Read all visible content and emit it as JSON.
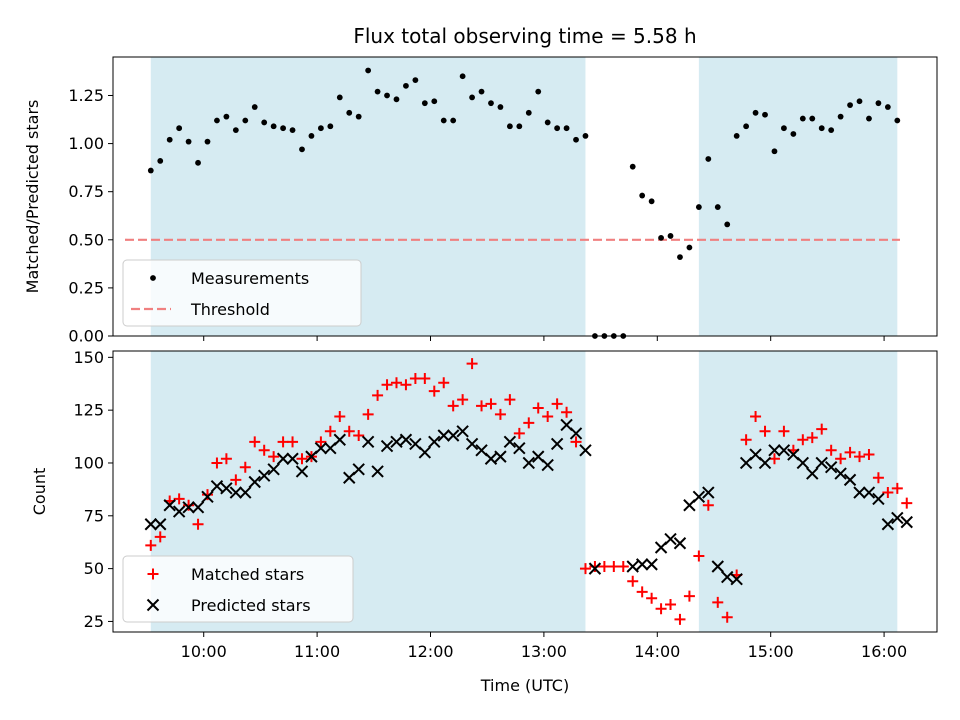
{
  "chart_data": [
    {
      "type": "scatter",
      "title": "Flux total observing time = 5.58 h",
      "xlabel": "",
      "ylabel": "Matched/Predicted stars",
      "xlim": [
        "09:12",
        "16:28"
      ],
      "ylim": [
        0,
        1.45
      ],
      "x_ticks": [
        "10:00",
        "11:00",
        "12:00",
        "13:00",
        "14:00",
        "15:00",
        "16:00"
      ],
      "y_ticks": [
        "0.00",
        "0.25",
        "0.50",
        "0.75",
        "1.00",
        "1.25"
      ],
      "shaded_intervals": [
        [
          "09:32",
          "13:22"
        ],
        [
          "14:22",
          "16:07"
        ]
      ],
      "shade_color": "#add8e6",
      "legend": {
        "placement": "lower-left",
        "entries": [
          "Measurements",
          "Threshold"
        ]
      },
      "threshold": {
        "name": "Threshold",
        "value": 0.5,
        "color": "#f08080",
        "style": "dashed"
      },
      "series": [
        {
          "name": "Measurements",
          "color": "#000000",
          "marker": "dot",
          "points": [
            [
              "09:32",
              0.86
            ],
            [
              "09:37",
              0.91
            ],
            [
              "09:42",
              1.02
            ],
            [
              "09:47",
              1.08
            ],
            [
              "09:52",
              1.01
            ],
            [
              "09:57",
              0.9
            ],
            [
              "10:02",
              1.01
            ],
            [
              "10:07",
              1.12
            ],
            [
              "10:12",
              1.14
            ],
            [
              "10:17",
              1.07
            ],
            [
              "10:22",
              1.12
            ],
            [
              "10:27",
              1.19
            ],
            [
              "10:32",
              1.11
            ],
            [
              "10:37",
              1.09
            ],
            [
              "10:42",
              1.08
            ],
            [
              "10:47",
              1.07
            ],
            [
              "10:52",
              0.97
            ],
            [
              "10:57",
              1.04
            ],
            [
              "11:02",
              1.08
            ],
            [
              "11:07",
              1.09
            ],
            [
              "11:12",
              1.24
            ],
            [
              "11:17",
              1.16
            ],
            [
              "11:22",
              1.14
            ],
            [
              "11:27",
              1.38
            ],
            [
              "11:32",
              1.27
            ],
            [
              "11:37",
              1.25
            ],
            [
              "11:42",
              1.23
            ],
            [
              "11:47",
              1.3
            ],
            [
              "11:52",
              1.33
            ],
            [
              "11:57",
              1.21
            ],
            [
              "12:02",
              1.22
            ],
            [
              "12:07",
              1.12
            ],
            [
              "12:12",
              1.12
            ],
            [
              "12:17",
              1.35
            ],
            [
              "12:22",
              1.24
            ],
            [
              "12:27",
              1.27
            ],
            [
              "12:32",
              1.21
            ],
            [
              "12:37",
              1.19
            ],
            [
              "12:42",
              1.09
            ],
            [
              "12:47",
              1.09
            ],
            [
              "12:52",
              1.16
            ],
            [
              "12:57",
              1.27
            ],
            [
              "13:02",
              1.11
            ],
            [
              "13:07",
              1.08
            ],
            [
              "13:12",
              1.08
            ],
            [
              "13:17",
              1.02
            ],
            [
              "13:22",
              1.04
            ],
            [
              "13:27",
              0.0
            ],
            [
              "13:32",
              0.0
            ],
            [
              "13:37",
              0.0
            ],
            [
              "13:42",
              0.0
            ],
            [
              "13:47",
              0.88
            ],
            [
              "13:52",
              0.73
            ],
            [
              "13:57",
              0.7
            ],
            [
              "14:02",
              0.51
            ],
            [
              "14:07",
              0.52
            ],
            [
              "14:12",
              0.41
            ],
            [
              "14:17",
              0.46
            ],
            [
              "14:22",
              0.67
            ],
            [
              "14:27",
              0.92
            ],
            [
              "14:32",
              0.67
            ],
            [
              "14:37",
              0.58
            ],
            [
              "14:42",
              1.04
            ],
            [
              "14:47",
              1.09
            ],
            [
              "14:52",
              1.16
            ],
            [
              "14:57",
              1.15
            ],
            [
              "15:02",
              0.96
            ],
            [
              "15:07",
              1.08
            ],
            [
              "15:12",
              1.05
            ],
            [
              "15:17",
              1.13
            ],
            [
              "15:22",
              1.13
            ],
            [
              "15:27",
              1.08
            ],
            [
              "15:32",
              1.07
            ],
            [
              "15:37",
              1.14
            ],
            [
              "15:42",
              1.2
            ],
            [
              "15:47",
              1.22
            ],
            [
              "15:52",
              1.13
            ],
            [
              "15:57",
              1.21
            ],
            [
              "16:02",
              1.19
            ],
            [
              "16:07",
              1.12
            ]
          ]
        }
      ]
    },
    {
      "type": "scatter",
      "title": "",
      "xlabel": "Time (UTC)",
      "ylabel": "Count",
      "xlim": [
        "09:12",
        "16:28"
      ],
      "ylim": [
        20,
        153
      ],
      "x_ticks": [
        "10:00",
        "11:00",
        "12:00",
        "13:00",
        "14:00",
        "15:00",
        "16:00"
      ],
      "y_ticks": [
        "25",
        "50",
        "75",
        "100",
        "125",
        "150"
      ],
      "shaded_intervals": [
        [
          "09:32",
          "13:22"
        ],
        [
          "14:22",
          "16:07"
        ]
      ],
      "shade_color": "#add8e6",
      "legend": {
        "placement": "lower-left",
        "entries": [
          "Matched stars",
          "Predicted stars"
        ]
      },
      "series": [
        {
          "name": "Matched stars",
          "color": "#ff0000",
          "marker": "plus",
          "points": [
            [
              "09:32",
              61
            ],
            [
              "09:37",
              65
            ],
            [
              "09:42",
              82
            ],
            [
              "09:47",
              83
            ],
            [
              "09:52",
              80
            ],
            [
              "09:57",
              71
            ],
            [
              "10:02",
              85
            ],
            [
              "10:07",
              100
            ],
            [
              "10:12",
              102
            ],
            [
              "10:17",
              92
            ],
            [
              "10:22",
              98
            ],
            [
              "10:27",
              110
            ],
            [
              "10:32",
              106
            ],
            [
              "10:37",
              103
            ],
            [
              "10:42",
              110
            ],
            [
              "10:47",
              110
            ],
            [
              "10:52",
              102
            ],
            [
              "10:57",
              103
            ],
            [
              "11:02",
              110
            ],
            [
              "11:07",
              115
            ],
            [
              "11:12",
              122
            ],
            [
              "11:17",
              115
            ],
            [
              "11:22",
              113
            ],
            [
              "11:27",
              123
            ],
            [
              "11:32",
              132
            ],
            [
              "11:37",
              137
            ],
            [
              "11:42",
              138
            ],
            [
              "11:47",
              137
            ],
            [
              "11:52",
              140
            ],
            [
              "11:57",
              140
            ],
            [
              "12:02",
              134
            ],
            [
              "12:07",
              138
            ],
            [
              "12:12",
              127
            ],
            [
              "12:17",
              130
            ],
            [
              "12:22",
              147
            ],
            [
              "12:27",
              127
            ],
            [
              "12:32",
              128
            ],
            [
              "12:37",
              123
            ],
            [
              "12:42",
              130
            ],
            [
              "12:47",
              114
            ],
            [
              "12:52",
              119
            ],
            [
              "12:57",
              126
            ],
            [
              "13:02",
              122
            ],
            [
              "13:07",
              128
            ],
            [
              "13:12",
              124
            ],
            [
              "13:17",
              110
            ],
            [
              "13:22",
              50
            ],
            [
              "13:27",
              51
            ],
            [
              "13:32",
              51
            ],
            [
              "13:37",
              51
            ],
            [
              "13:42",
              51
            ],
            [
              "13:47",
              44
            ],
            [
              "13:52",
              39
            ],
            [
              "13:57",
              36
            ],
            [
              "14:02",
              31
            ],
            [
              "14:07",
              33
            ],
            [
              "14:12",
              26
            ],
            [
              "14:17",
              37
            ],
            [
              "14:22",
              56
            ],
            [
              "14:27",
              80
            ],
            [
              "14:32",
              34
            ],
            [
              "14:37",
              27
            ],
            [
              "14:42",
              47
            ],
            [
              "14:47",
              111
            ],
            [
              "14:52",
              122
            ],
            [
              "14:57",
              115
            ],
            [
              "15:02",
              102
            ],
            [
              "15:07",
              115
            ],
            [
              "15:12",
              106
            ],
            [
              "15:17",
              111
            ],
            [
              "15:22",
              112
            ],
            [
              "15:27",
              116
            ],
            [
              "15:32",
              106
            ],
            [
              "15:37",
              102
            ],
            [
              "15:42",
              105
            ],
            [
              "15:47",
              103
            ],
            [
              "15:52",
              104
            ],
            [
              "15:57",
              93
            ],
            [
              "16:02",
              86
            ],
            [
              "16:07",
              88
            ],
            [
              "16:12",
              81
            ]
          ]
        },
        {
          "name": "Predicted stars",
          "color": "#000000",
          "marker": "x",
          "points": [
            [
              "09:32",
              71
            ],
            [
              "09:37",
              71
            ],
            [
              "09:42",
              80
            ],
            [
              "09:47",
              77
            ],
            [
              "09:52",
              79
            ],
            [
              "09:57",
              79
            ],
            [
              "10:02",
              84
            ],
            [
              "10:07",
              89
            ],
            [
              "10:12",
              88
            ],
            [
              "10:17",
              86
            ],
            [
              "10:22",
              86
            ],
            [
              "10:27",
              91
            ],
            [
              "10:32",
              94
            ],
            [
              "10:37",
              97
            ],
            [
              "10:42",
              102
            ],
            [
              "10:47",
              102
            ],
            [
              "10:52",
              96
            ],
            [
              "10:57",
              103
            ],
            [
              "11:02",
              107
            ],
            [
              "11:07",
              107
            ],
            [
              "11:12",
              111
            ],
            [
              "11:17",
              93
            ],
            [
              "11:22",
              97
            ],
            [
              "11:27",
              110
            ],
            [
              "11:32",
              96
            ],
            [
              "11:37",
              108
            ],
            [
              "11:42",
              110
            ],
            [
              "11:47",
              111
            ],
            [
              "11:52",
              109
            ],
            [
              "11:57",
              105
            ],
            [
              "12:02",
              110
            ],
            [
              "12:07",
              113
            ],
            [
              "12:12",
              113
            ],
            [
              "12:17",
              115
            ],
            [
              "12:22",
              109
            ],
            [
              "12:27",
              106
            ],
            [
              "12:32",
              102
            ],
            [
              "12:37",
              103
            ],
            [
              "12:42",
              110
            ],
            [
              "12:47",
              107
            ],
            [
              "12:52",
              100
            ],
            [
              "12:57",
              103
            ],
            [
              "13:02",
              99
            ],
            [
              "13:07",
              109
            ],
            [
              "13:12",
              118
            ],
            [
              "13:17",
              114
            ],
            [
              "13:22",
              106
            ],
            [
              "13:27",
              50
            ],
            [
              "13:47",
              51
            ],
            [
              "13:52",
              52
            ],
            [
              "13:57",
              52
            ],
            [
              "14:02",
              60
            ],
            [
              "14:07",
              64
            ],
            [
              "14:12",
              62
            ],
            [
              "14:17",
              80
            ],
            [
              "14:22",
              84
            ],
            [
              "14:27",
              86
            ],
            [
              "14:32",
              51
            ],
            [
              "14:37",
              46
            ],
            [
              "14:42",
              45
            ],
            [
              "14:47",
              100
            ],
            [
              "14:52",
              104
            ],
            [
              "14:57",
              100
            ],
            [
              "15:02",
              106
            ],
            [
              "15:07",
              106
            ],
            [
              "15:12",
              104
            ],
            [
              "15:17",
              100
            ],
            [
              "15:22",
              95
            ],
            [
              "15:27",
              100
            ],
            [
              "15:32",
              98
            ],
            [
              "15:37",
              95
            ],
            [
              "15:42",
              92
            ],
            [
              "15:47",
              86
            ],
            [
              "15:52",
              86
            ],
            [
              "15:57",
              83
            ],
            [
              "16:02",
              71
            ],
            [
              "16:07",
              74
            ],
            [
              "16:12",
              72
            ]
          ]
        }
      ]
    }
  ]
}
